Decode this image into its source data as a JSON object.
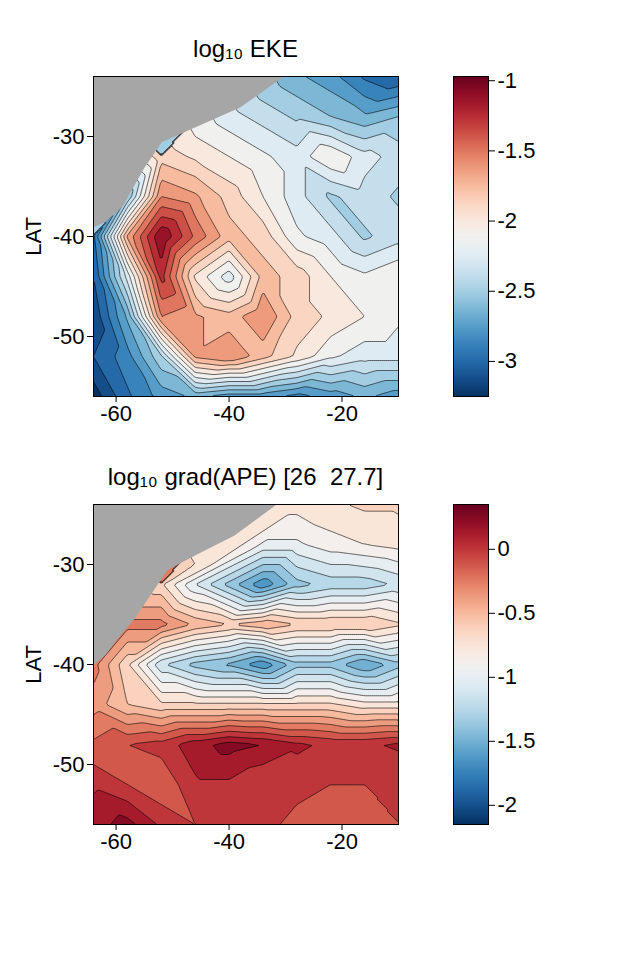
{
  "chart_data": [
    {
      "type": "contour",
      "title": "log₁₀ EKE",
      "ylabel": "LAT",
      "color": "RdBu",
      "xlim": [
        -64,
        -10
      ],
      "ylim": [
        -56,
        -24
      ],
      "xticks": [
        -60,
        -40,
        -20
      ],
      "yticks": [
        -30,
        -40,
        -50
      ],
      "lon": [
        -64,
        -58,
        -52,
        -46,
        -40,
        -34,
        -28,
        -22,
        -16,
        -10
      ],
      "lat": [
        -24,
        -28,
        -32,
        -36,
        -40,
        -44,
        -48,
        -52,
        -56
      ],
      "values": [
        [
          null,
          null,
          null,
          null,
          null,
          null,
          -2.6,
          -2.7,
          -2.9,
          -3.0
        ],
        [
          null,
          null,
          null,
          null,
          null,
          -2.3,
          -2.4,
          -2.5,
          -2.6,
          -2.5
        ],
        [
          null,
          null,
          -1.8,
          -1.9,
          -2.0,
          -2.1,
          -2.2,
          -2.0,
          -2.2,
          -2.3
        ],
        [
          null,
          -2.5,
          -1.5,
          -1.6,
          -1.8,
          -2.0,
          -2.2,
          -2.4,
          -2.3,
          -2.4
        ],
        [
          -2.9,
          -1.6,
          -1.0,
          -1.4,
          -1.7,
          -1.8,
          -2.1,
          -2.2,
          -2.4,
          -2.3
        ],
        [
          -3.0,
          -2.2,
          -1.2,
          -1.9,
          -2.2,
          -1.7,
          -1.8,
          -2.0,
          -2.1,
          -2.0
        ],
        [
          -3.1,
          -2.6,
          -1.5,
          -1.6,
          -1.7,
          -1.5,
          -1.8,
          -1.9,
          -2.0,
          -2.1
        ],
        [
          -3.0,
          -2.8,
          -2.4,
          -1.6,
          -1.5,
          -1.7,
          -1.9,
          -2.1,
          -2.2,
          -2.2
        ],
        [
          -3.2,
          -2.9,
          -2.7,
          -2.6,
          -2.7,
          -2.7,
          -2.8,
          -2.7,
          -2.6,
          -2.7
        ]
      ],
      "land": [
        [
          -64,
          -24
        ],
        [
          -30.5,
          -24
        ],
        [
          -38,
          -27
        ],
        [
          -46,
          -29
        ],
        [
          -52,
          -30.5
        ],
        [
          -55,
          -33
        ],
        [
          -57,
          -35
        ],
        [
          -59,
          -37
        ],
        [
          -62,
          -38.5
        ],
        [
          -64,
          -39
        ]
      ],
      "colorbar": {
        "range": [
          -3.25,
          -0.97
        ],
        "ticks": [
          -1,
          -1.5,
          -2,
          -2.5,
          -3
        ]
      }
    },
    {
      "type": "contour",
      "title": "log₁₀ grad(APE) [26  27.7]",
      "ylabel": "LAT",
      "color": "RdBu",
      "xlim": [
        -64,
        -10
      ],
      "ylim": [
        -56,
        -24
      ],
      "xticks": [
        -60,
        -40,
        -20
      ],
      "yticks": [
        -30,
        -40,
        -50
      ],
      "lon": [
        -64,
        -58,
        -52,
        -46,
        -40,
        -34,
        -28,
        -22,
        -16,
        -10
      ],
      "lat": [
        -24,
        -28,
        -32,
        -36,
        -40,
        -44,
        -48,
        -52,
        -56
      ],
      "values": [
        [
          null,
          null,
          null,
          null,
          null,
          null,
          -0.7,
          -0.65,
          -0.6,
          -0.6
        ],
        [
          null,
          null,
          null,
          null,
          null,
          -0.9,
          -0.9,
          -0.8,
          -0.75,
          -0.7
        ],
        [
          null,
          null,
          -0.6,
          -1.0,
          -1.3,
          -1.6,
          -1.3,
          -1.2,
          -1.2,
          -1.1
        ],
        [
          null,
          -0.2,
          -0.2,
          -0.4,
          -0.5,
          -0.4,
          -0.5,
          -0.5,
          -0.5,
          -0.6
        ],
        [
          -0.2,
          -0.6,
          -1.1,
          -1.3,
          -1.4,
          -1.6,
          -1.3,
          -1.3,
          -1.5,
          -1.3
        ],
        [
          -0.3,
          -0.5,
          -0.6,
          -0.6,
          -0.6,
          -0.6,
          -0.6,
          -0.6,
          -0.7,
          -0.7
        ],
        [
          -0.1,
          0.0,
          0.05,
          0.2,
          0.3,
          0.25,
          0.15,
          0.1,
          0.1,
          0.15
        ],
        [
          0.1,
          0.0,
          -0.1,
          0.1,
          0.1,
          0.0,
          0.05,
          0.0,
          0.0,
          0.0
        ],
        [
          0.2,
          0.3,
          0.1,
          0.0,
          0.1,
          0.05,
          -0.05,
          -0.05,
          -0.05,
          0.0
        ]
      ],
      "land": [
        [
          -64,
          -24
        ],
        [
          -31.8,
          -24
        ],
        [
          -39,
          -27
        ],
        [
          -46,
          -29
        ],
        [
          -51,
          -30.5
        ],
        [
          -54,
          -33
        ],
        [
          -57,
          -35.5
        ],
        [
          -60,
          -37.5
        ],
        [
          -62,
          -39
        ],
        [
          -64,
          -40
        ]
      ],
      "colorbar": {
        "range": [
          -2.15,
          0.35
        ],
        "ticks": [
          0,
          -0.5,
          -1,
          -1.5,
          -2
        ]
      }
    }
  ]
}
